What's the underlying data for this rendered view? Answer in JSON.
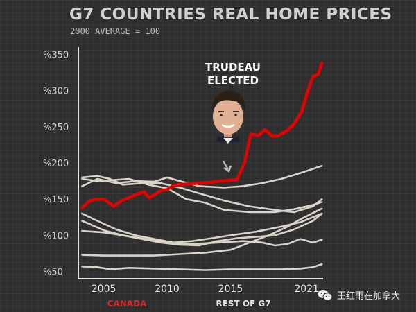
{
  "chart_data": {
    "type": "line",
    "title": "G7 COUNTRIES REAL HOME PRICES",
    "subtitle": "2000 AVERAGE = 100",
    "xlim": [
      2003,
      2022.3
    ],
    "ylim": [
      40,
      360
    ],
    "yticks": [
      50,
      100,
      150,
      200,
      250,
      300,
      350
    ],
    "ytick_labels": [
      "%50",
      "%100",
      "%150",
      "%200",
      "%250",
      "%300",
      "%350"
    ],
    "xticks": [
      2005,
      2010,
      2015,
      2021
    ],
    "xtick_labels": [
      "2005",
      "2010",
      "2015",
      "2021"
    ],
    "series": [
      {
        "name": "CANADA",
        "color": "#e60000",
        "x": [
          2003.3,
          2003.9,
          2004.5,
          2005.0,
          2005.4,
          2005.8,
          2006.4,
          2007.0,
          2007.6,
          2008.2,
          2008.6,
          2009.0,
          2009.5,
          2010.0,
          2010.5,
          2011.0,
          2011.7,
          2012.5,
          2013.3,
          2014.2,
          2015.0,
          2015.5,
          2016.1,
          2016.6,
          2017.2,
          2017.7,
          2018.3,
          2018.8,
          2019.4,
          2020.0,
          2020.6,
          2021.1,
          2021.5,
          2021.9,
          2022.2
        ],
        "y": [
          138,
          148,
          150,
          150,
          145,
          140,
          148,
          152,
          157,
          160,
          152,
          156,
          162,
          163,
          169,
          170,
          171,
          172,
          173,
          175,
          176,
          177,
          200,
          240,
          238,
          246,
          237,
          238,
          244,
          254,
          270,
          300,
          320,
          322,
          338
        ]
      },
      {
        "x": [
          2003.3,
          2004.5,
          2006.0,
          2007.5,
          2009.0,
          2010.0,
          2011.0,
          2012.5,
          2014.5,
          2016.0,
          2017.5,
          2019.0,
          2020.5,
          2022.2
        ],
        "y": [
          168,
          178,
          172,
          175,
          174,
          180,
          175,
          168,
          166,
          168,
          172,
          178,
          186,
          196
        ]
      },
      {
        "x": [
          2003.3,
          2004.5,
          2005.5,
          2006.5,
          2008.0,
          2009.5,
          2011.0,
          2012.5,
          2014.5,
          2016.5,
          2018.5,
          2020.0,
          2021.5,
          2022.2
        ],
        "y": [
          180,
          182,
          178,
          170,
          172,
          172,
          166,
          158,
          148,
          140,
          135,
          132,
          140,
          150
        ]
      },
      {
        "x": [
          2003.3,
          2004.5,
          2005.5,
          2007.0,
          2008.5,
          2010.0,
          2011.5,
          2013.0,
          2014.5,
          2016.5,
          2018.5,
          2020.0,
          2021.5,
          2022.2
        ],
        "y": [
          178,
          175,
          176,
          178,
          170,
          165,
          150,
          145,
          135,
          132,
          132,
          136,
          142,
          146
        ]
      },
      {
        "x": [
          2003.3,
          2004.5,
          2006.0,
          2007.5,
          2009.0,
          2010.5,
          2012.0,
          2013.5,
          2015.0,
          2017.0,
          2019.0,
          2020.5,
          2022.2
        ],
        "y": [
          130,
          120,
          108,
          100,
          95,
          90,
          92,
          96,
          100,
          105,
          112,
          118,
          130
        ]
      },
      {
        "x": [
          2003.3,
          2005.0,
          2006.5,
          2008.0,
          2009.5,
          2011.0,
          2012.5,
          2014.0,
          2015.5,
          2017.0,
          2018.5,
          2020.0,
          2021.5,
          2022.2
        ],
        "y": [
          120,
          107,
          100,
          95,
          90,
          87,
          86,
          92,
          96,
          98,
          100,
          108,
          120,
          130
        ]
      },
      {
        "x": [
          2003.3,
          2005.0,
          2006.5,
          2008.0,
          2010.0,
          2012.0,
          2014.0,
          2016.0,
          2017.5,
          2018.5,
          2019.5,
          2020.5,
          2021.5,
          2022.2
        ],
        "y": [
          106,
          104,
          100,
          96,
          90,
          88,
          90,
          92,
          90,
          86,
          88,
          95,
          90,
          94
        ]
      },
      {
        "x": [
          2003.3,
          2005.0,
          2007.0,
          2009.0,
          2011.0,
          2013.0,
          2015.0,
          2016.5,
          2018.0,
          2019.5,
          2020.5,
          2022.2
        ],
        "y": [
          73,
          72,
          72,
          72,
          74,
          76,
          80,
          90,
          100,
          112,
          122,
          137
        ]
      },
      {
        "x": [
          2003.3,
          2004.5,
          2005.5,
          2007.0,
          2009.0,
          2011.0,
          2013.0,
          2015.0,
          2017.0,
          2019.0,
          2020.5,
          2021.5,
          2022.2
        ],
        "y": [
          57,
          56,
          53,
          55,
          54,
          53,
          52,
          53,
          53,
          53,
          54,
          56,
          60
        ]
      }
    ],
    "annotation": {
      "text_line1": "TRUDEAU",
      "text_line2": "ELECTED",
      "x": 2015.2
    },
    "legend": [
      "CANADA",
      "REST OF G7"
    ],
    "legend_position": "bottom",
    "grid": false
  },
  "watermark": {
    "text": "王红雨在加拿大",
    "icon": "wechat-icon"
  }
}
